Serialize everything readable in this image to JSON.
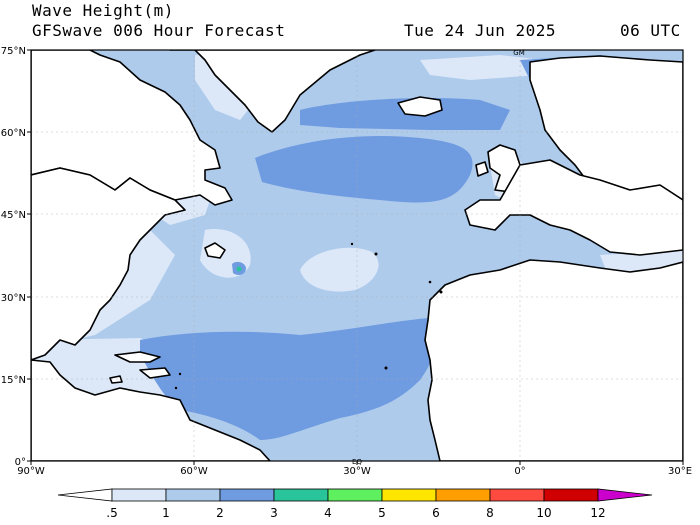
{
  "header": {
    "title": "Wave Height(m)",
    "subtitle": "GFSwave 006 Hour Forecast",
    "date": "Tue 24 Jun 2025",
    "time": "06 UTC"
  },
  "axes": {
    "lat_ticks": [
      "75°N",
      "60°N",
      "45°N",
      "30°N",
      "15°N",
      "0°"
    ],
    "lon_ticks": [
      "90°W",
      "60°W",
      "30°W",
      "0°",
      "30°E"
    ]
  },
  "map_marks": [
    "GM",
    "EQ"
  ],
  "colorbar": {
    "labels": [
      ".5",
      "1",
      "2",
      "3",
      "4",
      "5",
      "6",
      "8",
      "10",
      "12"
    ],
    "colors": [
      "#ffffff",
      "#dce8f8",
      "#aecbec",
      "#6f9be0",
      "#2ac49a",
      "#5ef05e",
      "#ffe600",
      "#ff9e00",
      "#ff4a40",
      "#d00000",
      "#cc00cc"
    ]
  },
  "palette": {
    "land": "#ffffff",
    "wave_low": "#aecbec",
    "wave_mid": "#6f9be0",
    "wave_calm": "#dce8f8",
    "wave_high": "#2ac49a"
  }
}
